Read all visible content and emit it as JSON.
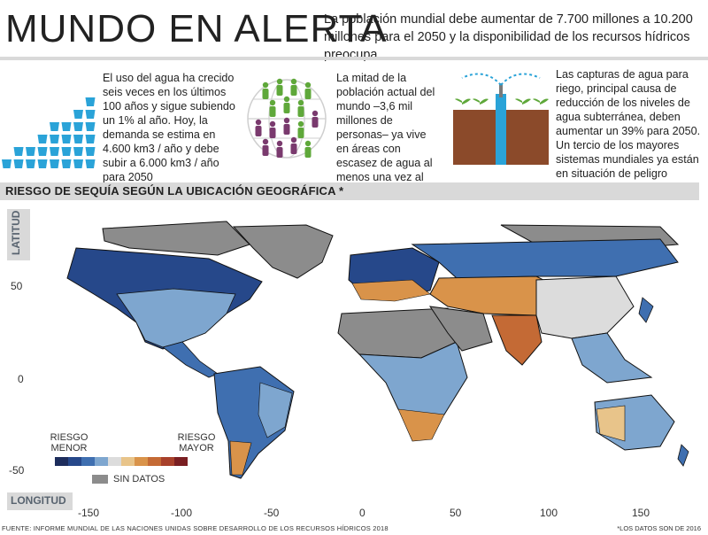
{
  "header": {
    "title": "MUNDO EN ALERTA",
    "subtitle": "La población mundial debe aumentar de 7.700 millones a 10.200 millones para el 2050 y la disponibilidad de los recursos hídricos preocupa"
  },
  "info": {
    "water_use": "El uso del agua ha crecido seis veces en los últimos 100 años y sigue subiendo un 1% al año. Hoy, la demanda se estima en 4.600 km3 / año y debe subir a 6.000 km3 / año para 2050",
    "population": "La mitad de la población actual del mundo –3,6 mil millones de personas– ya vive en áreas con escasez de agua al menos una vez al año",
    "irrigation": "Las capturas de agua para riego, principal causa de reducción de los niveles de agua subterránea, deben aumentar un 39% para 2050. Un tercio de los mayores sistemas mundiales ya están en situación de peligro"
  },
  "map": {
    "section_title": "RIESGO DE SEQUÍA SEGÚN LA UBICACIÓN GEOGRÁFICA *",
    "ylabel": "LATITUD",
    "xlabel": "LONGITUD",
    "yticks": [
      "50",
      "0",
      "-50"
    ],
    "xticks": [
      "-150",
      "-100",
      "-50",
      "0",
      "50",
      "100",
      "150"
    ],
    "legend": {
      "low_label": "RIESGO MENOR",
      "high_label": "RIESGO MAYOR",
      "colors": [
        "#1d2d5c",
        "#26488a",
        "#3f6fb0",
        "#7ea6cf",
        "#dcdcdc",
        "#e8c48a",
        "#d9934a",
        "#c46a35",
        "#a8412b",
        "#7a1f22"
      ],
      "no_data_label": "SIN DATOS",
      "no_data_color": "#8c8c8c"
    }
  },
  "footer": {
    "source": "FUENTE: INFORME MUNDIAL DE LAS NACIONES UNIDAS SOBRE DESARROLLO DE LOS RECURSOS HÍDRICOS 2018",
    "note": "*LOS DATOS SON DE 2016"
  }
}
